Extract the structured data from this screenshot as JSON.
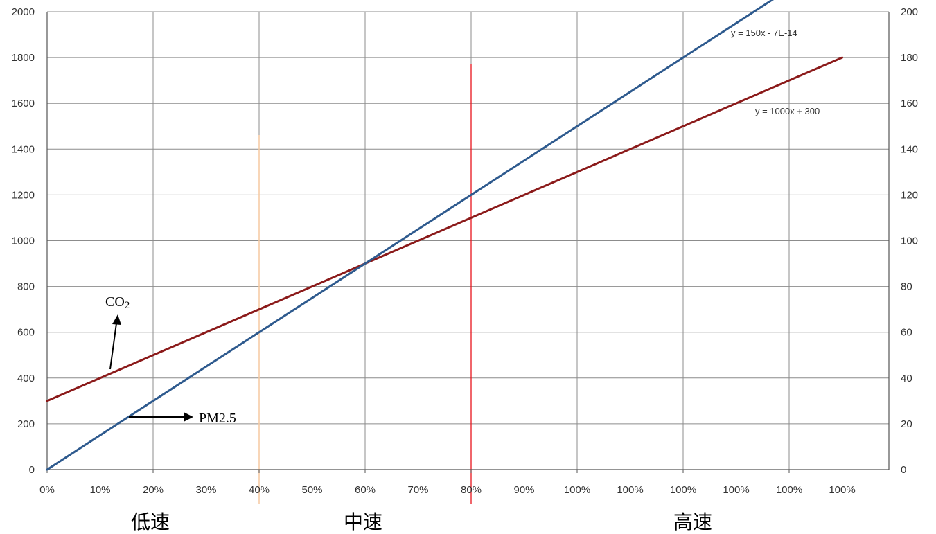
{
  "chart_data": {
    "type": "line",
    "categories": [
      "0%",
      "10%",
      "20%",
      "30%",
      "40%",
      "50%",
      "60%",
      "70%",
      "80%",
      "90%",
      "100%",
      "100%",
      "100%",
      "100%",
      "100%",
      "100%"
    ],
    "x": [
      0,
      0.1,
      0.2,
      0.3,
      0.4,
      0.5,
      0.6,
      0.7,
      0.8,
      0.9,
      1.0,
      1.1,
      1.2,
      1.3,
      1.4,
      1.5
    ],
    "series": [
      {
        "name": "CO₂",
        "color": "#8B1A1A",
        "axis": "left",
        "x": [
          0,
          1.5
        ],
        "values": [
          300,
          1800
        ]
      },
      {
        "name": "PM2.5",
        "color": "#2E5A8E",
        "axis": "right",
        "x": [
          0,
          1.4
        ],
        "values": [
          0,
          210
        ]
      }
    ],
    "trendlines": [
      {
        "series": "PM2.5",
        "equation": "y = 150x - 7E-14"
      },
      {
        "series": "CO₂",
        "equation": "y = 1000x + 300"
      }
    ],
    "y_left": {
      "min": 0,
      "max": 2000,
      "ticks": [
        "0",
        "200",
        "400",
        "600",
        "800",
        "1000",
        "1200",
        "1400",
        "1600",
        "1800",
        "2000"
      ]
    },
    "y_right": {
      "min": 0,
      "max": 200,
      "ticks": [
        "0",
        "20",
        "40",
        "60",
        "80",
        "100",
        "120",
        "140",
        "160",
        "180",
        "200"
      ]
    },
    "vertical_markers": [
      {
        "x": 0.4,
        "color": "#F5C9A0"
      },
      {
        "x": 0.8,
        "color": "#E8141C"
      }
    ],
    "annotations": [
      {
        "label": "CO₂",
        "arrow": "up",
        "series": "CO₂"
      },
      {
        "label": "PM2.5",
        "arrow": "right",
        "series": "PM2.5"
      }
    ],
    "zones": [
      "低速",
      "中速",
      "高速"
    ],
    "grid": true
  }
}
